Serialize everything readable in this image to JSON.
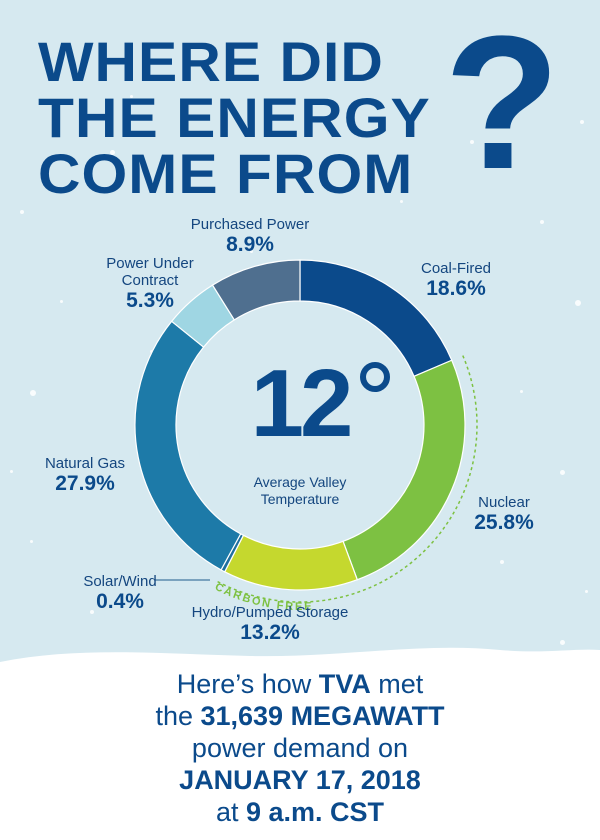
{
  "title": {
    "line1": "WHERE DID",
    "line2": "THE ENERGY",
    "line3": "COME FROM",
    "mark": "?"
  },
  "center": {
    "temperature": "12",
    "caption_line1": "Average Valley",
    "caption_line2": "Temperature"
  },
  "carbon_free_label": "CARBON FREE",
  "chart_data": {
    "type": "pie",
    "categories": [
      "Coal-Fired",
      "Nuclear",
      "Hydro/Pumped Storage",
      "Solar/Wind",
      "Natural Gas",
      "Power Under Contract",
      "Purchased Power"
    ],
    "values": [
      18.6,
      25.8,
      13.2,
      0.4,
      27.9,
      5.3,
      8.9
    ],
    "labels": [
      {
        "name": "Coal-Fired",
        "pct": "18.6%"
      },
      {
        "name": "Nuclear",
        "pct": "25.8%"
      },
      {
        "name": "Hydro/Pumped Storage",
        "pct": "13.2%"
      },
      {
        "name": "Solar/Wind",
        "pct": "0.4%"
      },
      {
        "name": "Natural Gas",
        "pct": "27.9%"
      },
      {
        "name_line1": "Power Under",
        "name_line2": "Contract",
        "pct": "5.3%"
      },
      {
        "name": "Purchased Power",
        "pct": "8.9%"
      }
    ],
    "colors": [
      "#0b4a8b",
      "#7dc142",
      "#c5d82e",
      "#1f6f9e",
      "#1d7aa8",
      "#9fd6e3",
      "#4f6f8f"
    ]
  },
  "footer": {
    "l1a": "Here’s how ",
    "l1b": "TVA",
    "l1c": " met",
    "l2a": "the ",
    "l2b": "31,639 MEGAWATT",
    "l3": "power demand on",
    "l4": "JANUARY 17, 2018",
    "l5a": "at ",
    "l5b": "9 a.m. CST"
  }
}
